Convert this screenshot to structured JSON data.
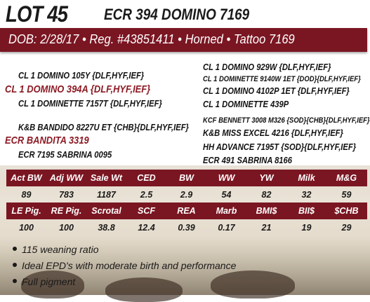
{
  "lot": {
    "number": "LOT 45",
    "name": "ECR 394 DOMINO 7169"
  },
  "banner": {
    "text": "DOB: 2/28/17 • Reg. #43851411 • Horned • Tattoo 7169"
  },
  "pedigree": {
    "sire": {
      "sire": "CL 1 DOMINO 105Y {DLF,HYF,IEF}",
      "name": "CL 1 DOMINO 394A {DLF,HYF,IEF}",
      "dam": "CL 1 DOMINETTE 7157T {DLF,HYF,IEF}",
      "ss": "CL 1 DOMINO 929W {DLF,HYF,IEF}",
      "sd": "CL 1 DOMINETTE 9140W 1ET {DOD}{DLF,HYF,IEF}",
      "ds": "CL 1 DOMINO 4102P 1ET {DLF,HYF,IEF}",
      "dd": "CL 1 DOMINETTE 439P"
    },
    "dam": {
      "sire": "K&B BANDIDO 8227U ET {CHB}{DLF,HYF,IEF}",
      "name": "ECR BANDITA 3319",
      "dam": "ECR 7195 SABRINA 0095",
      "ss": "KCF BENNETT 3008 M326 {SOD}{CHB}{DLF,HYF,IEF}",
      "sd": "K&B MISS EXCEL 4216 {DLF,HYF,IEF}",
      "ds": "HH ADVANCE 7195T {SOD}{DLF,HYF,IEF}",
      "dd": "ECR 491 SABRINA 8166"
    }
  },
  "epd_row1": {
    "headers": [
      "Act BW",
      "Adj WW",
      "Sale Wt",
      "CED",
      "BW",
      "WW",
      "YW",
      "Milk",
      "M&G"
    ],
    "values": [
      "89",
      "783",
      "1187",
      "2.5",
      "2.9",
      "54",
      "82",
      "32",
      "59"
    ]
  },
  "epd_row2": {
    "headers": [
      "LE Pig.",
      "RE Pig.",
      "Scrotal",
      "SCF",
      "REA",
      "Marb",
      "BMI$",
      "BII$",
      "$CHB"
    ],
    "values": [
      "100",
      "100",
      "38.8",
      "12.4",
      "0.39",
      "0.17",
      "21",
      "19",
      "29"
    ]
  },
  "notes": [
    "115 weaning ratio",
    "Ideal EPD's with moderate birth and performance",
    "Full pigment"
  ],
  "colors": {
    "accent": "#7a1622",
    "sire_red": "#8c1a24"
  }
}
